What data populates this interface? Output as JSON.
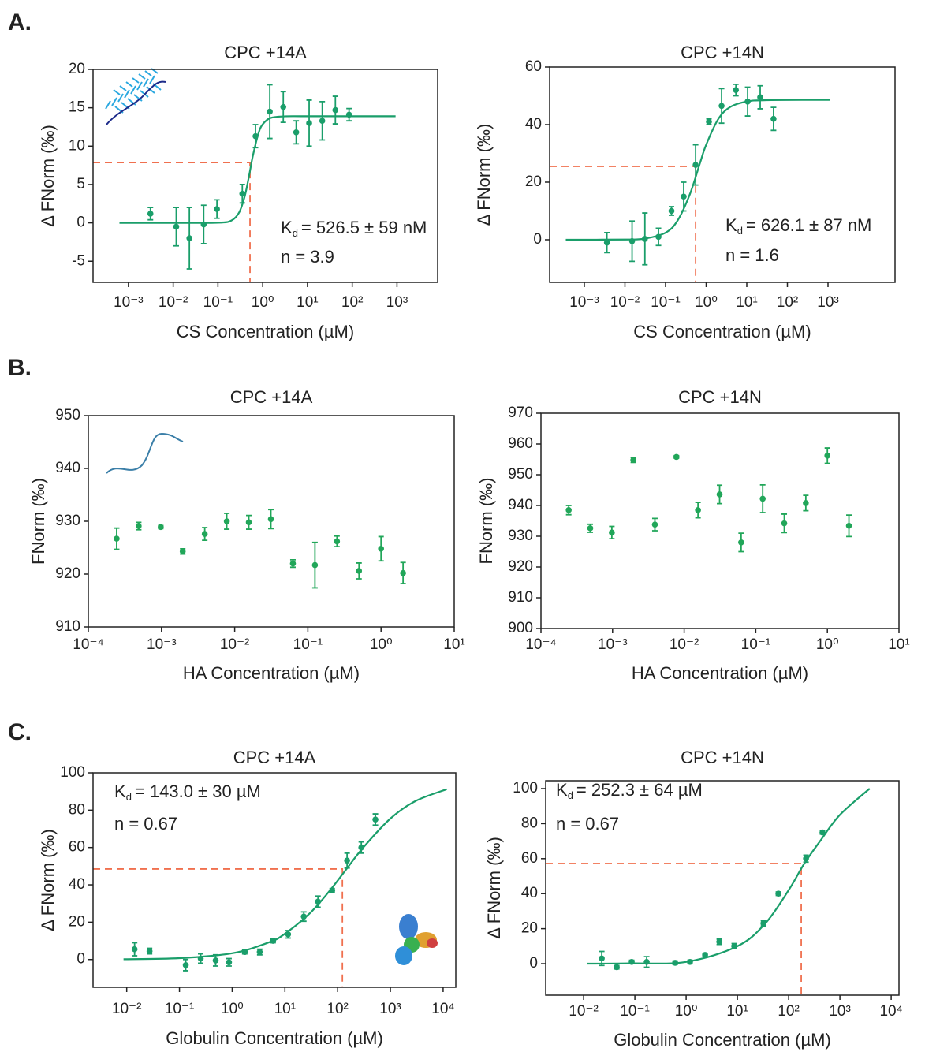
{
  "panel_labels": [
    "A.",
    "B.",
    "C."
  ],
  "chart_data": [
    {
      "type": "scatter",
      "title": "CPC +14A",
      "xlabel": "CS Concentration (µM)",
      "ylabel": "Δ FNorm (‰)",
      "xscale": "log",
      "xlim": [
        0.000162,
        8100
      ],
      "ylim": [
        -7.75,
        20
      ],
      "xticks": [
        {
          "value": 0.001,
          "label": "10⁻³"
        },
        {
          "value": 0.01,
          "label": "10⁻²"
        },
        {
          "value": 0.1,
          "label": "10⁻¹"
        },
        {
          "value": 1,
          "label": "10⁰"
        },
        {
          "value": 10,
          "label": "10¹"
        },
        {
          "value": 100,
          "label": "10²"
        },
        {
          "value": 1000,
          "label": "10³"
        }
      ],
      "yticks": [
        -5,
        0,
        5,
        10,
        15,
        20
      ],
      "points": {
        "color": "#1a9e6a",
        "x": [
          0.0031,
          0.0117,
          0.023,
          0.048,
          0.095,
          0.35,
          0.69,
          1.44,
          2.88,
          5.6,
          10.9,
          21.4,
          42,
          85
        ],
        "values": [
          1.2,
          -0.5,
          -2,
          -0.2,
          1.8,
          3.8,
          11.3,
          14.5,
          15.1,
          11.8,
          13,
          13.3,
          14.7,
          14.1
        ],
        "errors": [
          0.8,
          2.5,
          4,
          2.5,
          1.2,
          1.2,
          1.5,
          3.5,
          2,
          1.5,
          3,
          2.5,
          1.8,
          0.8
        ]
      },
      "fit": {
        "color": "#1a9e6a",
        "x": [
          0.00063,
          0.01,
          0.1,
          0.2,
          0.3,
          0.4,
          0.5,
          0.6,
          0.8,
          1,
          1.5,
          3,
          10,
          930
        ],
        "values": [
          0,
          0,
          0.02,
          0.31,
          1.4,
          3.55,
          6.25,
          8.69,
          11.62,
          12.85,
          13.67,
          13.88,
          13.9,
          13.9
        ]
      },
      "kd_marker": {
        "color": "#f0704f",
        "x": 0.52,
        "y": 7.86
      },
      "kd_label": {
        "symbol": "K",
        "subscript": "d",
        "text": "= 526.5 ± 59 nM"
      },
      "n_label": "n = 3.9"
    },
    {
      "type": "scatter",
      "title": "CPC +14N",
      "xlabel": "CS Concentration (µM)",
      "ylabel": "Δ FNorm (‰)",
      "xscale": "log",
      "xlim": [
        0.00014,
        44700
      ],
      "ylim": [
        -14.8,
        60
      ],
      "xticks": [
        {
          "value": 0.001,
          "label": "10⁻³"
        },
        {
          "value": 0.01,
          "label": "10⁻²"
        },
        {
          "value": 0.1,
          "label": "10⁻¹"
        },
        {
          "value": 1,
          "label": "10⁰"
        },
        {
          "value": 10,
          "label": "10¹"
        },
        {
          "value": 100,
          "label": "10²"
        },
        {
          "value": 1000,
          "label": "10³"
        }
      ],
      "yticks": [
        0,
        20,
        40,
        60
      ],
      "points": {
        "color": "#1a9e6a",
        "x": [
          0.0036,
          0.015,
          0.031,
          0.067,
          0.14,
          0.28,
          0.55,
          1.17,
          2.4,
          5.4,
          10.5,
          21.4,
          45.6
        ],
        "values": [
          -1,
          -0.5,
          0.3,
          1,
          10,
          15,
          26,
          41,
          46.5,
          52,
          48,
          49.5,
          42
        ],
        "errors": [
          3.5,
          7,
          9,
          3,
          1.5,
          5,
          7,
          1,
          6,
          2,
          5,
          4,
          4
        ]
      },
      "fit": {
        "color": "#1a9e6a",
        "x": [
          0.00035,
          0.01,
          0.03,
          0.1,
          0.2,
          0.4,
          0.7,
          1,
          2,
          4,
          10,
          30,
          1100
        ],
        "values": [
          0,
          0.07,
          0.37,
          2.45,
          6.78,
          15.94,
          26.5,
          33,
          42,
          46.2,
          48,
          48.5,
          48.6
        ]
      },
      "kd_marker": {
        "color": "#f0704f",
        "x": 0.55,
        "y": 25.5
      },
      "kd_label": {
        "symbol": "K",
        "subscript": "d",
        "text": "= 626.1 ± 87 nM"
      },
      "n_label": "n = 1.6"
    },
    {
      "type": "scatter",
      "title": "CPC +14A",
      "xlabel": "HA Concentration (µM)",
      "ylabel": "FNorm (‰)",
      "xscale": "log",
      "xlim": [
        0.0001,
        10
      ],
      "ylim": [
        910,
        950
      ],
      "xticks": [
        {
          "value": 0.0001,
          "label": "10⁻⁴"
        },
        {
          "value": 0.001,
          "label": "10⁻³"
        },
        {
          "value": 0.01,
          "label": "10⁻²"
        },
        {
          "value": 0.1,
          "label": "10⁻¹"
        },
        {
          "value": 1,
          "label": "10⁰"
        },
        {
          "value": 10,
          "label": "10¹"
        }
      ],
      "yticks": [
        910,
        920,
        930,
        940,
        950
      ],
      "points": {
        "color": "#21a659",
        "x": [
          0.000244,
          0.000488,
          0.000977,
          0.00195,
          0.0039,
          0.0078,
          0.0156,
          0.03125,
          0.0625,
          0.125,
          0.25,
          0.5,
          1,
          2
        ],
        "values": [
          926.7,
          929.1,
          928.9,
          924.3,
          927.6,
          930,
          929.8,
          930.4,
          922,
          921.7,
          926.2,
          920.6,
          924.8,
          920.2
        ],
        "errors": [
          2,
          0.7,
          0.3,
          0.5,
          1.2,
          1.5,
          1.3,
          1.8,
          0.7,
          4.3,
          1,
          1.5,
          2.3,
          2
        ]
      }
    },
    {
      "type": "scatter",
      "title": "CPC +14N",
      "xlabel": "HA Concentration (µM)",
      "ylabel": "FNorm (‰)",
      "xscale": "log",
      "xlim": [
        0.0001,
        10
      ],
      "ylim": [
        900,
        970
      ],
      "xticks": [
        {
          "value": 0.0001,
          "label": "10⁻⁴"
        },
        {
          "value": 0.001,
          "label": "10⁻³"
        },
        {
          "value": 0.01,
          "label": "10⁻²"
        },
        {
          "value": 0.1,
          "label": "10⁻¹"
        },
        {
          "value": 1,
          "label": "10⁰"
        },
        {
          "value": 10,
          "label": "10¹"
        }
      ],
      "yticks": [
        900,
        910,
        920,
        930,
        940,
        950,
        960,
        970
      ],
      "points": {
        "color": "#21a659",
        "x": [
          0.000244,
          0.000488,
          0.000977,
          0.00195,
          0.0039,
          0.0078,
          0.0156,
          0.03125,
          0.0625,
          0.125,
          0.25,
          0.5,
          1,
          2
        ],
        "values": [
          938.5,
          932.6,
          931.2,
          954.8,
          933.8,
          955.8,
          938.5,
          943.6,
          928,
          942.2,
          934.2,
          940.8,
          956.2,
          933.4
        ],
        "errors": [
          1.5,
          1.3,
          2,
          0.8,
          2,
          0.4,
          2.5,
          3,
          3,
          4.5,
          3,
          2.5,
          2.5,
          3.5
        ]
      }
    },
    {
      "type": "scatter",
      "title": "CPC +14A",
      "xlabel": "Globulin Concentration (µM)",
      "ylabel": "Δ FNorm (‰)",
      "xscale": "log",
      "xlim": [
        0.0023,
        17400
      ],
      "ylim": [
        -14.9,
        100
      ],
      "xticks": [
        {
          "value": 0.01,
          "label": "10⁻²"
        },
        {
          "value": 0.1,
          "label": "10⁻¹"
        },
        {
          "value": 1,
          "label": "10⁰"
        },
        {
          "value": 10,
          "label": "10¹"
        },
        {
          "value": 100,
          "label": "10²"
        },
        {
          "value": 1000,
          "label": "10³"
        },
        {
          "value": 10000,
          "label": "10⁴"
        }
      ],
      "yticks": [
        0,
        20,
        40,
        60,
        80,
        100
      ],
      "points": {
        "color": "#1a9e6a",
        "x": [
          0.0141,
          0.0271,
          0.1316,
          0.253,
          0.486,
          0.871,
          1.73,
          3.33,
          5.97,
          11.5,
          22.8,
          42.4,
          78.7,
          151,
          281,
          520
        ],
        "values": [
          5.5,
          4.5,
          -3,
          0.5,
          -0.5,
          -1.5,
          4,
          4,
          10,
          13.5,
          23,
          31,
          37,
          53,
          60,
          75
        ],
        "errors": [
          3.5,
          1.5,
          3,
          2.5,
          3,
          2,
          1,
          1.5,
          1,
          2,
          2.5,
          3,
          1,
          4,
          3,
          3
        ]
      },
      "fit": {
        "color": "#1a9e6a",
        "x": [
          0.0087,
          0.1,
          1,
          5,
          10,
          30,
          70,
          143,
          300,
          1000,
          3000,
          11700
        ],
        "values": [
          0.14,
          0.74,
          3.33,
          9.2,
          13.8,
          24.9,
          36.7,
          48,
          59.7,
          75.5,
          84.9,
          91.2
        ]
      },
      "kd_marker": {
        "color": "#f0704f",
        "x": 123,
        "y": 48.5
      },
      "kd_label": {
        "symbol": "K",
        "subscript": "d",
        "text": "= 143.0 ± 30 µM"
      },
      "n_label": "n = 0.67"
    },
    {
      "type": "scatter",
      "title": "CPC +14N",
      "xlabel": "Globulin Concentration (µM)",
      "ylabel": "Δ FNorm (‰)",
      "xscale": "log",
      "xlim": [
        0.00182,
        14200
      ],
      "ylim": [
        -18,
        104.5
      ],
      "xticks": [
        {
          "value": 0.01,
          "label": "10⁻²"
        },
        {
          "value": 0.1,
          "label": "10⁻¹"
        },
        {
          "value": 1,
          "label": "10⁰"
        },
        {
          "value": 10,
          "label": "10¹"
        },
        {
          "value": 100,
          "label": "10²"
        },
        {
          "value": 1000,
          "label": "10³"
        },
        {
          "value": 10000,
          "label": "10⁴"
        }
      ],
      "yticks": [
        0,
        20,
        40,
        60,
        80,
        100
      ],
      "points": {
        "color": "#1a9e6a",
        "x": [
          0.0226,
          0.0443,
          0.0867,
          0.17,
          0.61,
          1.19,
          2.34,
          4.43,
          8.67,
          32.2,
          63.1,
          218,
          457
        ],
        "values": [
          3,
          -2,
          1,
          1,
          0.5,
          1,
          5,
          12.5,
          10,
          23,
          40,
          60,
          75
        ],
        "errors": [
          4,
          1,
          1,
          3,
          1,
          1,
          0.5,
          1.5,
          1.5,
          1.5,
          1,
          2,
          1
        ]
      },
      "fit": {
        "color": "#1a9e6a",
        "x": [
          0.0119,
          0.084,
          1,
          10,
          35,
          100,
          200,
          410,
          1000,
          3800
        ],
        "values": [
          0,
          0.2,
          1,
          10,
          23,
          42,
          57,
          70,
          85,
          100
        ]
      },
      "kd_marker": {
        "color": "#f0704f",
        "x": 176,
        "y": 57.2
      },
      "kd_label": {
        "symbol": "K",
        "subscript": "d",
        "text": "= 252.3 ± 64 µM"
      },
      "n_label": "n = 0.67"
    }
  ]
}
